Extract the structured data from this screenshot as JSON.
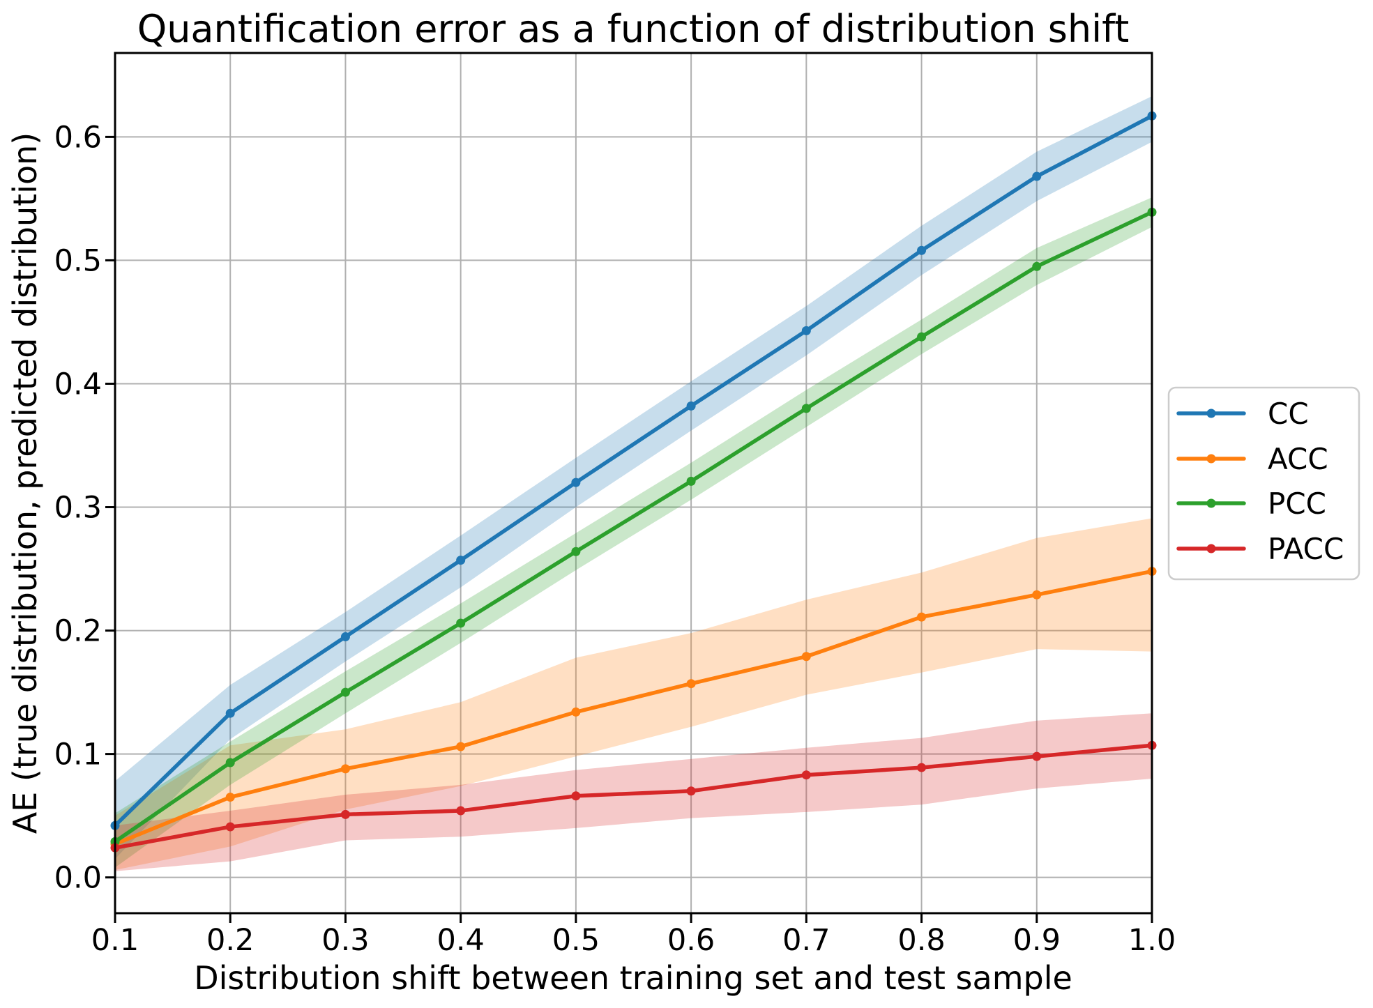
{
  "figure": {
    "background": "#ffffff",
    "grid_color": "#b0b0b0",
    "spine_color": "#000000",
    "legend_border_color": "#cccccc",
    "legend_background": "#ffffff"
  },
  "chart_data": {
    "type": "line",
    "title": "Quantification error as a function of distribution shift",
    "xlabel": "Distribution shift between training set and test sample",
    "ylabel": "AE (true distribution, predicted distribution)",
    "grid": true,
    "legend_position": "outside-right",
    "xlim": [
      0.1,
      1.0
    ],
    "ylim": [
      -0.029,
      0.668
    ],
    "x": [
      0.1,
      0.2,
      0.3,
      0.4,
      0.5,
      0.6,
      0.7,
      0.8,
      0.9,
      1.0
    ],
    "xticks": {
      "values": [
        0.1,
        0.2,
        0.3,
        0.4,
        0.5,
        0.6,
        0.7,
        0.8,
        0.9,
        1.0
      ],
      "labels": [
        "0.1",
        "0.2",
        "0.3",
        "0.4",
        "0.5",
        "0.6",
        "0.7",
        "0.8",
        "0.9",
        "1.0"
      ]
    },
    "yticks": {
      "values": [
        0.0,
        0.1,
        0.2,
        0.3,
        0.4,
        0.5,
        0.6
      ],
      "labels": [
        "0.0",
        "0.1",
        "0.2",
        "0.3",
        "0.4",
        "0.5",
        "0.6"
      ]
    },
    "band_opacity": 0.25,
    "series": [
      {
        "name": "CC",
        "color": "#1f77b4",
        "values": [
          0.042,
          0.133,
          0.195,
          0.257,
          0.32,
          0.382,
          0.443,
          0.508,
          0.568,
          0.617
        ],
        "band_low": [
          0.015,
          0.112,
          0.175,
          0.235,
          0.3,
          0.362,
          0.423,
          0.488,
          0.548,
          0.596
        ],
        "band_high": [
          0.078,
          0.156,
          0.215,
          0.277,
          0.34,
          0.402,
          0.463,
          0.528,
          0.588,
          0.633
        ]
      },
      {
        "name": "ACC",
        "color": "#ff7f0e",
        "values": [
          0.027,
          0.065,
          0.088,
          0.106,
          0.134,
          0.157,
          0.179,
          0.211,
          0.229,
          0.248
        ],
        "band_low": [
          0.006,
          0.025,
          0.055,
          0.074,
          0.098,
          0.122,
          0.148,
          0.166,
          0.185,
          0.183
        ],
        "band_high": [
          0.05,
          0.107,
          0.12,
          0.142,
          0.178,
          0.198,
          0.225,
          0.247,
          0.275,
          0.291
        ]
      },
      {
        "name": "PCC",
        "color": "#2ca02c",
        "values": [
          0.029,
          0.093,
          0.15,
          0.206,
          0.264,
          0.321,
          0.38,
          0.438,
          0.495,
          0.539
        ],
        "band_low": [
          0.008,
          0.075,
          0.133,
          0.19,
          0.249,
          0.306,
          0.365,
          0.424,
          0.48,
          0.527
        ],
        "band_high": [
          0.052,
          0.11,
          0.167,
          0.222,
          0.279,
          0.336,
          0.395,
          0.452,
          0.51,
          0.551
        ]
      },
      {
        "name": "PACC",
        "color": "#d62728",
        "values": [
          0.024,
          0.041,
          0.051,
          0.054,
          0.066,
          0.07,
          0.083,
          0.089,
          0.098,
          0.107
        ],
        "band_low": [
          0.005,
          0.013,
          0.03,
          0.033,
          0.04,
          0.048,
          0.053,
          0.059,
          0.072,
          0.08
        ],
        "band_high": [
          0.042,
          0.054,
          0.067,
          0.075,
          0.087,
          0.096,
          0.105,
          0.113,
          0.127,
          0.133
        ]
      }
    ]
  }
}
